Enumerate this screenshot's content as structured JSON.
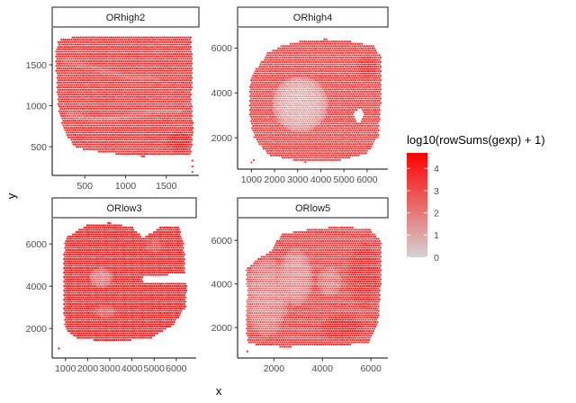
{
  "chart_data": {
    "type": "scatter",
    "xlabel": "x",
    "ylabel": "y",
    "grid": false,
    "legend_position": "right",
    "legend": {
      "title": "log10(rowSums(gexp) + 1)",
      "ticks": [
        "0",
        "1",
        "2",
        "3",
        "4"
      ],
      "tick_values": [
        0,
        1,
        2,
        3,
        4
      ],
      "range": [
        0,
        4.7
      ],
      "color_low": "#d3d3d3",
      "color_high": "#ff0000"
    },
    "panels": [
      {
        "title": "ORhigh2",
        "xlim": [
          100,
          1900
        ],
        "ylim": [
          150,
          1950
        ],
        "x_ticks": [
          500,
          1000,
          1500
        ],
        "x_tick_labels": [
          "500",
          "1000",
          "1500"
        ],
        "y_ticks": [
          500,
          1000,
          1500
        ],
        "y_tick_labels": [
          "500",
          "1000",
          "1500"
        ],
        "tissue_outline": [
          [
            180,
            1800
          ],
          [
            400,
            1850
          ],
          [
            700,
            1850
          ],
          [
            1000,
            1860
          ],
          [
            1400,
            1860
          ],
          [
            1800,
            1860
          ],
          [
            1820,
            1500
          ],
          [
            1810,
            1100
          ],
          [
            1830,
            700
          ],
          [
            1800,
            400
          ],
          [
            1500,
            400
          ],
          [
            1200,
            380
          ],
          [
            800,
            420
          ],
          [
            400,
            480
          ],
          [
            260,
            650
          ],
          [
            170,
            1000
          ],
          [
            150,
            1400
          ],
          [
            150,
            1700
          ]
        ],
        "base_value": 3.7,
        "features": [
          {
            "kind": "line",
            "points": [
              [
                300,
                900
              ],
              [
                600,
                830
              ],
              [
                900,
                850
              ],
              [
                1300,
                920
              ],
              [
                1650,
                930
              ]
            ],
            "value": 2.6
          },
          {
            "kind": "line",
            "points": [
              [
                250,
                1550
              ],
              [
                650,
                1450
              ],
              [
                1000,
                1350
              ],
              [
                1400,
                1330
              ]
            ],
            "value": 2.9
          },
          {
            "kind": "blob",
            "cx": 1650,
            "cy": 560,
            "rx": 150,
            "ry": 130,
            "value": 4.6
          }
        ],
        "stray_points": [
          [
            1820,
            260
          ],
          [
            1820,
            330
          ],
          [
            1820,
            190
          ]
        ]
      },
      {
        "title": "ORhigh4",
        "xlim": [
          400,
          6900
        ],
        "ylim": [
          600,
          6900
        ],
        "x_ticks": [
          1000,
          2000,
          3000,
          4000,
          5000,
          6000
        ],
        "x_tick_labels": [
          "1000",
          "2000",
          "3000",
          "4000",
          "5000",
          "6000"
        ],
        "y_ticks": [
          2000,
          4000,
          6000
        ],
        "y_tick_labels": [
          "2000",
          "4000",
          "6000"
        ],
        "tissue_outline": [
          [
            1300,
            5200
          ],
          [
            1700,
            5800
          ],
          [
            2300,
            6100
          ],
          [
            3100,
            6300
          ],
          [
            4200,
            6400
          ],
          [
            5300,
            6300
          ],
          [
            6300,
            6100
          ],
          [
            6600,
            5600
          ],
          [
            6600,
            3800
          ],
          [
            6500,
            2100
          ],
          [
            6000,
            1300
          ],
          [
            4800,
            1000
          ],
          [
            3300,
            900
          ],
          [
            1800,
            1200
          ],
          [
            1100,
            2000
          ],
          [
            900,
            3200
          ],
          [
            900,
            4300
          ],
          [
            1100,
            5000
          ]
        ],
        "base_value": 3.4,
        "features": [
          {
            "kind": "blob",
            "cx": 3100,
            "cy": 3500,
            "rx": 1200,
            "ry": 1250,
            "value": 0.9
          },
          {
            "kind": "blob",
            "cx": 6000,
            "cy": 5200,
            "rx": 450,
            "ry": 500,
            "value": 4.2
          },
          {
            "kind": "hole",
            "cx": 5650,
            "cy": 3000,
            "rx": 200,
            "ry": 280
          }
        ],
        "stray_points": [
          [
            1000,
            900
          ],
          [
            1100,
            1000
          ]
        ]
      },
      {
        "title": "ORlow3",
        "xlim": [
          400,
          6900
        ],
        "ylim": [
          600,
          7200
        ],
        "x_ticks": [
          1000,
          2000,
          3000,
          4000,
          5000,
          6000
        ],
        "x_tick_labels": [
          "1000",
          "2000",
          "3000",
          "4000",
          "5000",
          "6000"
        ],
        "y_ticks": [
          2000,
          4000,
          6000
        ],
        "y_tick_labels": [
          "2000",
          "4000",
          "6000"
        ],
        "tissue_outline": [
          [
            1000,
            6300
          ],
          [
            2000,
            6900
          ],
          [
            3000,
            7000
          ],
          [
            4000,
            6800
          ],
          [
            4500,
            6300
          ],
          [
            5300,
            6800
          ],
          [
            6100,
            6850
          ],
          [
            6300,
            6200
          ],
          [
            6400,
            5300
          ],
          [
            6400,
            4600
          ],
          [
            4500,
            4450
          ],
          [
            4500,
            4200
          ],
          [
            6500,
            4200
          ],
          [
            6400,
            3000
          ],
          [
            5900,
            2200
          ],
          [
            4800,
            1500
          ],
          [
            3000,
            1400
          ],
          [
            1600,
            1500
          ],
          [
            1000,
            1900
          ],
          [
            900,
            3200
          ],
          [
            900,
            5000
          ]
        ],
        "base_value": 4.1,
        "features": [
          {
            "kind": "blob",
            "cx": 2600,
            "cy": 4400,
            "rx": 520,
            "ry": 480,
            "value": 2.2
          },
          {
            "kind": "blob",
            "cx": 2800,
            "cy": 2800,
            "rx": 550,
            "ry": 300,
            "value": 3.0
          },
          {
            "kind": "blob",
            "cx": 5000,
            "cy": 5900,
            "rx": 400,
            "ry": 350,
            "value": 3.4
          }
        ],
        "stray_points": [
          [
            700,
            1050
          ]
        ]
      },
      {
        "title": "ORlow5",
        "xlim": [
          500,
          6700
        ],
        "ylim": [
          600,
          7000
        ],
        "x_ticks": [
          2000,
          4000,
          6000
        ],
        "x_tick_labels": [
          "2000",
          "4000",
          "6000"
        ],
        "y_ticks": [
          2000,
          4000,
          6000
        ],
        "y_tick_labels": [
          "2000",
          "4000",
          "6000"
        ],
        "tissue_outline": [
          [
            2300,
            6300
          ],
          [
            3400,
            6500
          ],
          [
            4800,
            6650
          ],
          [
            6000,
            6500
          ],
          [
            6400,
            6000
          ],
          [
            6400,
            4000
          ],
          [
            6300,
            2300
          ],
          [
            5900,
            1300
          ],
          [
            5000,
            1200
          ],
          [
            3600,
            1200
          ],
          [
            2600,
            1100
          ],
          [
            1500,
            1150
          ],
          [
            900,
            1300
          ],
          [
            850,
            2400
          ],
          [
            900,
            3700
          ],
          [
            850,
            4700
          ],
          [
            1400,
            5200
          ],
          [
            1900,
            5500
          ]
        ],
        "base_value": 3.6,
        "features": [
          {
            "kind": "blob",
            "cx": 1700,
            "cy": 3400,
            "rx": 900,
            "ry": 1800,
            "value": 2.0
          },
          {
            "kind": "blob",
            "cx": 2900,
            "cy": 4300,
            "rx": 700,
            "ry": 1300,
            "value": 1.8
          },
          {
            "kind": "blob",
            "cx": 4300,
            "cy": 4100,
            "rx": 500,
            "ry": 700,
            "value": 2.3
          },
          {
            "kind": "blob",
            "cx": 5700,
            "cy": 4400,
            "rx": 650,
            "ry": 1500,
            "value": 4.3
          },
          {
            "kind": "blob",
            "cx": 4800,
            "cy": 2000,
            "rx": 900,
            "ry": 600,
            "value": 4.4
          }
        ],
        "stray_points": [
          [
            900,
            900
          ]
        ]
      }
    ]
  }
}
